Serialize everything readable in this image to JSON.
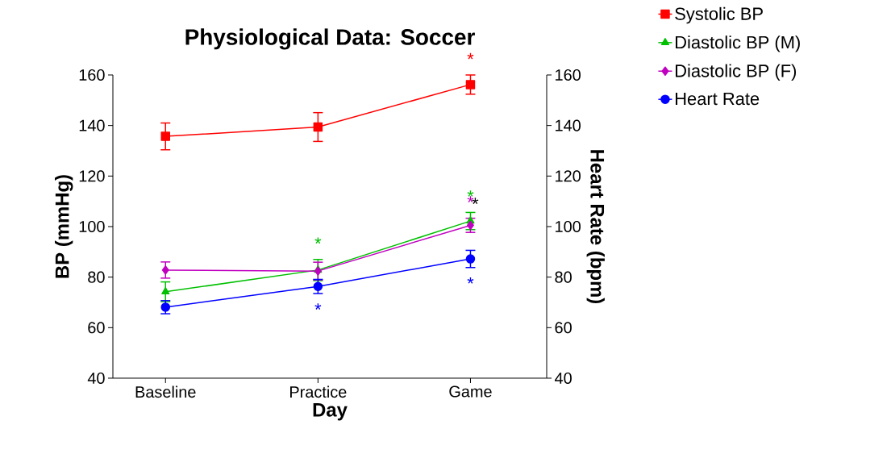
{
  "chart_data": {
    "type": "line",
    "title": "Physiological Data: Soccer",
    "xlabel": "Day",
    "ylabel": "BP (mmHg)",
    "y2label": "Heart Rate (bpm)",
    "categories": [
      "Baseline",
      "Practice",
      "Game"
    ],
    "series": [
      {
        "name": "Systolic BP",
        "color": "#ff0000",
        "marker": "square",
        "values": [
          135.7,
          139.4,
          156.2
        ],
        "errors": [
          5.3,
          5.7,
          3.8
        ],
        "value_labels": [
          null,
          null,
          "*"
        ]
      },
      {
        "name": "Diastolic BP (M)",
        "color": "#00c000",
        "marker": "triangle",
        "values": [
          74.2,
          82.8,
          102.2
        ],
        "errors": [
          3.9,
          4.2,
          3.4
        ],
        "value_labels": [
          null,
          "*",
          "*"
        ]
      },
      {
        "name": "Diastolic BP (F)",
        "color": "#c000c0",
        "marker": "diamond",
        "values": [
          82.8,
          82.4,
          100.5
        ],
        "errors": [
          3.2,
          3.5,
          2.8
        ],
        "value_labels": [
          null,
          null,
          "*"
        ]
      },
      {
        "name": "Heart Rate",
        "color": "#0000ff",
        "marker": "circle",
        "axis": "y2",
        "values": [
          68.1,
          76.3,
          87.2
        ],
        "errors": [
          2.6,
          2.8,
          3.4
        ],
        "value_labels": [
          null,
          "*",
          "*"
        ]
      }
    ],
    "ylim": [
      40,
      160
    ],
    "yticks": [
      40,
      60,
      80,
      100,
      120,
      140,
      160
    ],
    "y2lim": [
      40,
      160
    ],
    "y2ticks": [
      40,
      60,
      80,
      100,
      120,
      140,
      160
    ],
    "annotations": [
      "*"
    ],
    "legend": "top right",
    "line_style": "solid"
  }
}
